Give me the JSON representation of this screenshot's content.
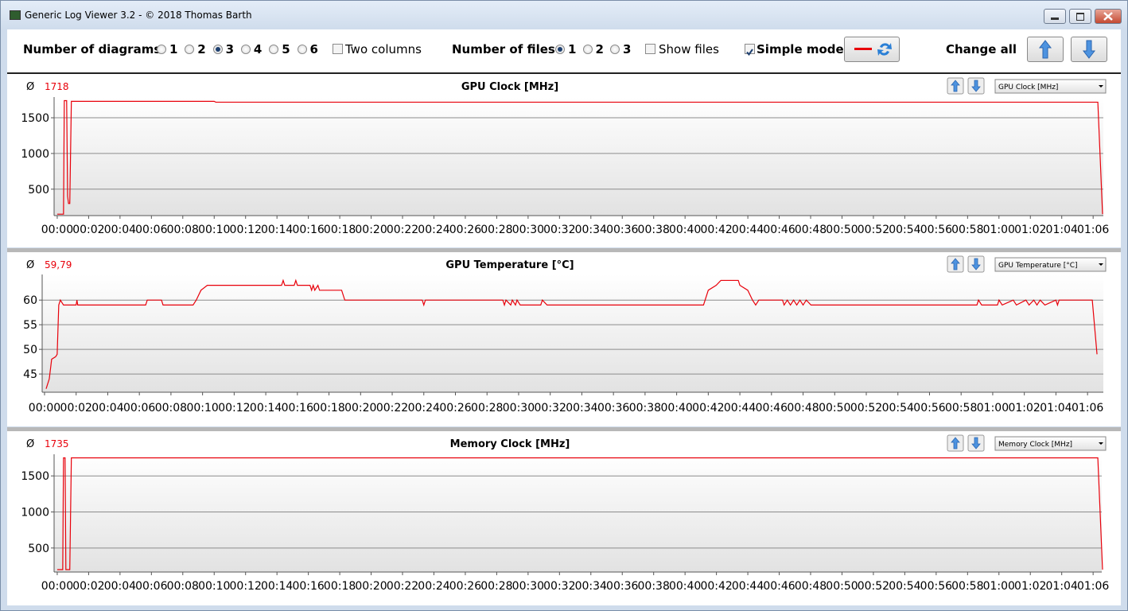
{
  "window": {
    "title": "Generic Log Viewer 3.2 - © 2018 Thomas Barth"
  },
  "toolbar": {
    "diagrams_label": "Number of diagrams",
    "diagram_options": [
      "1",
      "2",
      "3",
      "4",
      "5",
      "6"
    ],
    "diagram_selected": "3",
    "two_columns": {
      "label": "Two columns",
      "checked": false
    },
    "files_label": "Number of files",
    "file_options": [
      "1",
      "2",
      "3"
    ],
    "file_selected": "1",
    "show_files": {
      "label": "Show files",
      "checked": false
    },
    "simple_mode": {
      "label": "Simple mode",
      "checked": true
    },
    "change_all": "Change all"
  },
  "chart_data": [
    {
      "type": "line",
      "title": "GPU Clock [MHz]",
      "average_symbol": "Ø",
      "average": "1718",
      "selector": "GPU Clock [MHz]",
      "x": [
        0,
        0.4,
        0.45,
        0.6,
        0.66,
        0.72,
        0.8,
        0.9,
        10,
        10.1,
        66.3,
        66.6
      ],
      "series": [
        {
          "color": "#e8000a",
          "values": [
            150,
            150,
            1740,
            1740,
            400,
            300,
            300,
            1730,
            1730,
            1718,
            1718,
            150
          ]
        }
      ],
      "xlim": [
        -0.2,
        66.65
      ],
      "ylim": [
        130,
        1790
      ],
      "yticks": [
        500,
        1000,
        1500
      ],
      "grid": true,
      "xticks": [
        {
          "value": 0,
          "label": "00:00"
        },
        {
          "value": 2,
          "label": "00:02"
        },
        {
          "value": 4,
          "label": "00:04"
        },
        {
          "value": 6,
          "label": "00:06"
        },
        {
          "value": 8,
          "label": "00:08"
        },
        {
          "value": 10,
          "label": "00:10"
        },
        {
          "value": 12,
          "label": "00:12"
        },
        {
          "value": 14,
          "label": "00:14"
        },
        {
          "value": 16,
          "label": "00:16"
        },
        {
          "value": 18,
          "label": "00:18"
        },
        {
          "value": 20,
          "label": "00:20"
        },
        {
          "value": 22,
          "label": "00:22"
        },
        {
          "value": 24,
          "label": "00:24"
        },
        {
          "value": 26,
          "label": "00:26"
        },
        {
          "value": 28,
          "label": "00:28"
        },
        {
          "value": 30,
          "label": "00:30"
        },
        {
          "value": 32,
          "label": "00:32"
        },
        {
          "value": 34,
          "label": "00:34"
        },
        {
          "value": 36,
          "label": "00:36"
        },
        {
          "value": 38,
          "label": "00:38"
        },
        {
          "value": 40,
          "label": "00:40"
        },
        {
          "value": 42,
          "label": "00:42"
        },
        {
          "value": 44,
          "label": "00:44"
        },
        {
          "value": 46,
          "label": "00:46"
        },
        {
          "value": 48,
          "label": "00:48"
        },
        {
          "value": 50,
          "label": "00:50"
        },
        {
          "value": 52,
          "label": "00:52"
        },
        {
          "value": 54,
          "label": "00:54"
        },
        {
          "value": 56,
          "label": "00:56"
        },
        {
          "value": 58,
          "label": "00:58"
        },
        {
          "value": 60,
          "label": "01:00"
        },
        {
          "value": 62,
          "label": "01:02"
        },
        {
          "value": 64,
          "label": "01:04"
        },
        {
          "value": 66,
          "label": "01:06"
        }
      ]
    },
    {
      "type": "line",
      "title": "GPU Temperature [°C]",
      "average_symbol": "Ø",
      "average": "59,79",
      "selector": "GPU Temperature [°C]",
      "x": [
        0.1,
        0.3,
        0.45,
        0.7,
        0.8,
        0.9,
        1.0,
        1.2,
        2.0,
        2.05,
        2.1,
        6.4,
        6.5,
        7.4,
        7.5,
        9.4,
        9.6,
        9.9,
        10.3,
        15.0,
        15.1,
        15.2,
        15.8,
        15.9,
        16.0,
        16.8,
        16.9,
        17.0,
        17.1,
        17.3,
        17.4,
        18.8,
        19.0,
        23.9,
        24.0,
        24.1,
        29.0,
        29.1,
        29.2,
        29.5,
        29.6,
        29.8,
        29.9,
        30.1,
        31.4,
        31.5,
        31.8,
        41.7,
        42.0,
        42.5,
        42.8,
        43.9,
        44.0,
        44.5,
        44.8,
        45.0,
        45.2,
        46.7,
        46.8,
        47.0,
        47.2,
        47.4,
        47.6,
        47.8,
        48.0,
        48.2,
        48.5,
        59.0,
        59.1,
        59.3,
        60.3,
        60.4,
        60.6,
        61.3,
        61.5,
        62.1,
        62.3,
        62.6,
        62.8,
        63.0,
        63.3,
        64.0,
        64.1,
        64.2,
        66.3,
        66.6
      ],
      "series": [
        {
          "color": "#e8000a",
          "values": [
            42,
            44,
            48,
            48.5,
            49,
            59,
            60,
            59,
            59,
            60,
            59,
            59,
            60,
            60,
            59,
            59,
            60,
            62,
            63,
            63,
            64,
            63,
            63,
            64,
            63,
            63,
            62,
            63,
            62,
            63,
            62,
            62,
            60,
            60,
            59,
            60,
            60,
            59,
            60,
            59,
            60,
            59,
            60,
            59,
            59,
            60,
            59,
            59,
            62,
            63,
            64,
            64,
            63,
            62,
            60,
            59,
            60,
            60,
            59,
            60,
            59,
            60,
            59,
            60,
            59,
            60,
            59,
            59,
            60,
            59,
            59,
            60,
            59,
            60,
            59,
            60,
            59,
            60,
            59,
            60,
            59,
            60,
            59,
            60,
            60,
            49
          ]
        }
      ],
      "xlim": [
        -0.15,
        67.0
      ],
      "ylim": [
        41.3,
        65.2
      ],
      "yticks": [
        45,
        50,
        55,
        60
      ],
      "grid": true,
      "xticks": [
        {
          "value": 0,
          "label": "00:00"
        },
        {
          "value": 2,
          "label": "00:02"
        },
        {
          "value": 4,
          "label": "00:04"
        },
        {
          "value": 6,
          "label": "00:06"
        },
        {
          "value": 8,
          "label": "00:08"
        },
        {
          "value": 10,
          "label": "00:10"
        },
        {
          "value": 12,
          "label": "00:12"
        },
        {
          "value": 14,
          "label": "00:14"
        },
        {
          "value": 16,
          "label": "00:16"
        },
        {
          "value": 18,
          "label": "00:18"
        },
        {
          "value": 20,
          "label": "00:20"
        },
        {
          "value": 22,
          "label": "00:22"
        },
        {
          "value": 24,
          "label": "00:24"
        },
        {
          "value": 26,
          "label": "00:26"
        },
        {
          "value": 28,
          "label": "00:28"
        },
        {
          "value": 30,
          "label": "00:30"
        },
        {
          "value": 32,
          "label": "00:32"
        },
        {
          "value": 34,
          "label": "00:34"
        },
        {
          "value": 36,
          "label": "00:36"
        },
        {
          "value": 38,
          "label": "00:38"
        },
        {
          "value": 40,
          "label": "00:40"
        },
        {
          "value": 42,
          "label": "00:42"
        },
        {
          "value": 44,
          "label": "00:44"
        },
        {
          "value": 46,
          "label": "00:46"
        },
        {
          "value": 48,
          "label": "00:48"
        },
        {
          "value": 50,
          "label": "00:50"
        },
        {
          "value": 52,
          "label": "00:52"
        },
        {
          "value": 54,
          "label": "00:54"
        },
        {
          "value": 56,
          "label": "00:56"
        },
        {
          "value": 58,
          "label": "00:58"
        },
        {
          "value": 60,
          "label": "01:00"
        },
        {
          "value": 62,
          "label": "01:02"
        },
        {
          "value": 64,
          "label": "01:04"
        },
        {
          "value": 66,
          "label": "01:06"
        }
      ]
    },
    {
      "type": "line",
      "title": "Memory Clock [MHz]",
      "average_symbol": "Ø",
      "average": "1735",
      "selector": "Memory Clock [MHz]",
      "x": [
        0,
        0.35,
        0.4,
        0.5,
        0.55,
        0.8,
        0.9,
        66.3,
        66.6
      ],
      "series": [
        {
          "color": "#e8000a",
          "values": [
            200,
            200,
            1750,
            1750,
            200,
            200,
            1750,
            1750,
            200
          ]
        }
      ],
      "xlim": [
        -0.2,
        66.55
      ],
      "ylim": [
        167,
        1800
      ],
      "yticks": [
        500,
        1000,
        1500
      ],
      "grid": true,
      "xticks": [
        {
          "value": 0,
          "label": "00:00"
        },
        {
          "value": 2,
          "label": "00:02"
        },
        {
          "value": 4,
          "label": "00:04"
        },
        {
          "value": 6,
          "label": "00:06"
        },
        {
          "value": 8,
          "label": "00:08"
        },
        {
          "value": 10,
          "label": "00:10"
        },
        {
          "value": 12,
          "label": "00:12"
        },
        {
          "value": 14,
          "label": "00:14"
        },
        {
          "value": 16,
          "label": "00:16"
        },
        {
          "value": 18,
          "label": "00:18"
        },
        {
          "value": 20,
          "label": "00:20"
        },
        {
          "value": 22,
          "label": "00:22"
        },
        {
          "value": 24,
          "label": "00:24"
        },
        {
          "value": 26,
          "label": "00:26"
        },
        {
          "value": 28,
          "label": "00:28"
        },
        {
          "value": 30,
          "label": "00:30"
        },
        {
          "value": 32,
          "label": "00:32"
        },
        {
          "value": 34,
          "label": "00:34"
        },
        {
          "value": 36,
          "label": "00:36"
        },
        {
          "value": 38,
          "label": "00:38"
        },
        {
          "value": 40,
          "label": "00:40"
        },
        {
          "value": 42,
          "label": "00:42"
        },
        {
          "value": 44,
          "label": "00:44"
        },
        {
          "value": 46,
          "label": "00:46"
        },
        {
          "value": 48,
          "label": "00:48"
        },
        {
          "value": 50,
          "label": "00:50"
        },
        {
          "value": 52,
          "label": "00:52"
        },
        {
          "value": 54,
          "label": "00:54"
        },
        {
          "value": 56,
          "label": "00:56"
        },
        {
          "value": 58,
          "label": "00:58"
        },
        {
          "value": 60,
          "label": "01:00"
        },
        {
          "value": 62,
          "label": "01:02"
        },
        {
          "value": 64,
          "label": "01:04"
        },
        {
          "value": 66,
          "label": "01:06"
        }
      ]
    }
  ]
}
